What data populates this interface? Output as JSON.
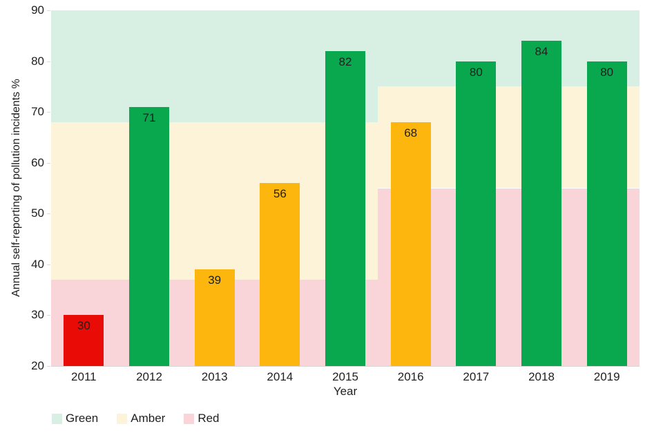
{
  "chart_data": {
    "type": "bar",
    "title": "",
    "xlabel": "Year",
    "ylabel": "Annual self-reporting of pollution incidents %",
    "ylim": [
      20,
      90
    ],
    "yticks": [
      90,
      80,
      70,
      60,
      50,
      40,
      30,
      20
    ],
    "categories": [
      "2011",
      "2012",
      "2013",
      "2014",
      "2015",
      "2016",
      "2017",
      "2018",
      "2019"
    ],
    "values": [
      30,
      71,
      39,
      56,
      82,
      68,
      80,
      84,
      80
    ],
    "bar_ratings": [
      "red",
      "green",
      "amber",
      "amber",
      "green",
      "amber",
      "green",
      "green",
      "green"
    ],
    "patterned_bars": [
      "2011"
    ],
    "grid": false,
    "legend_position": "bottom-left",
    "bands": [
      {
        "from_category": "2011",
        "to_category": "2015",
        "green": [
          68,
          90
        ],
        "amber": [
          37,
          68
        ],
        "red": [
          20,
          37
        ]
      },
      {
        "from_category": "2016",
        "to_category": "2019",
        "green": [
          75,
          90
        ],
        "amber": [
          55,
          75
        ],
        "red": [
          20,
          55
        ]
      }
    ],
    "legend": [
      {
        "label": "Green",
        "rating": "green"
      },
      {
        "label": "Amber",
        "rating": "amber"
      },
      {
        "label": "Red",
        "rating": "red"
      }
    ],
    "colors": {
      "bar_green": "#09a84e",
      "bar_amber": "#fcb60e",
      "bar_red": "#e80b06",
      "band_green": "#d8efe3",
      "band_amber": "#fdf3d8",
      "band_red": "#f9d4d8",
      "axis_text": "#1f1f1f"
    }
  }
}
